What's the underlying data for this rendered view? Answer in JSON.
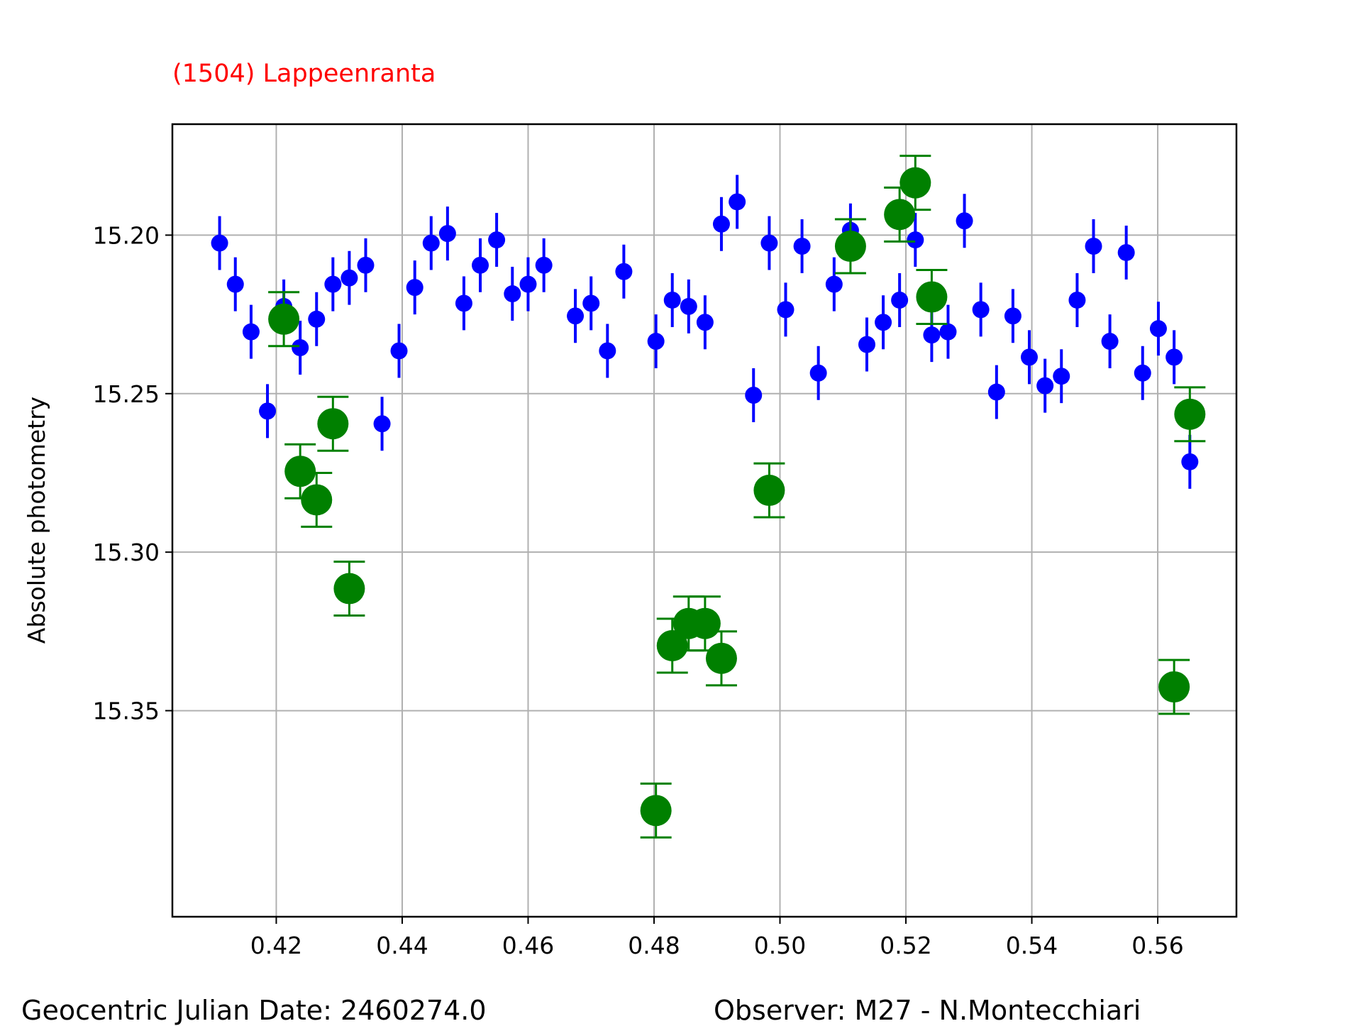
{
  "chart_data": {
    "type": "scatter",
    "title": "(1504) Lappeenranta",
    "xlabel": "",
    "ylabel": "Absolute photometry",
    "xlim": [
      0.4035,
      0.5725
    ],
    "ylim": [
      15.415,
      15.165
    ],
    "y_inverted": true,
    "grid": true,
    "x_ticks": [
      0.42,
      0.44,
      0.46,
      0.48,
      0.5,
      0.52,
      0.54,
      0.56
    ],
    "x_tick_labels": [
      "0.42",
      "0.44",
      "0.46",
      "0.48",
      "0.50",
      "0.52",
      "0.54",
      "0.56"
    ],
    "y_ticks": [
      15.2,
      15.25,
      15.3,
      15.35
    ],
    "y_tick_labels": [
      "15.20",
      "15.25",
      "15.30",
      "15.35"
    ],
    "series": [
      {
        "color": "#0000ff",
        "marker": "small-circle",
        "errorbar_caps": false,
        "err": 0.0085,
        "x": [
          0.411,
          0.4135,
          0.416,
          0.4186,
          0.4212,
          0.4238,
          0.4264,
          0.429,
          0.4316,
          0.4342,
          0.4368,
          0.4395,
          0.442,
          0.4446,
          0.4472,
          0.4498,
          0.4524,
          0.455,
          0.4575,
          0.46,
          0.4625,
          0.4675,
          0.47,
          0.4726,
          0.4752,
          0.4803,
          0.4829,
          0.4855,
          0.4881,
          0.4907,
          0.4932,
          0.4958,
          0.4983,
          0.5009,
          0.5035,
          0.5061,
          0.5086,
          0.5112,
          0.5138,
          0.5164,
          0.519,
          0.5215,
          0.5241,
          0.5267,
          0.5293,
          0.5319,
          0.5344,
          0.537,
          0.5396,
          0.5421,
          0.5447,
          0.5472,
          0.5498,
          0.5524,
          0.555,
          0.5576,
          0.5601,
          0.5626,
          0.5651
        ],
        "y": [
          15.2025,
          15.2155,
          15.2305,
          15.2555,
          15.2225,
          15.2355,
          15.2265,
          15.2155,
          15.2135,
          15.2095,
          15.2595,
          15.2365,
          15.2165,
          15.2025,
          15.1995,
          15.2215,
          15.2095,
          15.2015,
          15.2185,
          15.2155,
          15.2095,
          15.2255,
          15.2215,
          15.2365,
          15.2115,
          15.2335,
          15.2205,
          15.2225,
          15.2275,
          15.1965,
          15.1895,
          15.2505,
          15.2025,
          15.2235,
          15.2035,
          15.2435,
          15.2155,
          15.1985,
          15.2345,
          15.2275,
          15.2205,
          15.2015,
          15.2315,
          15.2305,
          15.1955,
          15.2235,
          15.2495,
          15.2255,
          15.2385,
          15.2475,
          15.2445,
          15.2205,
          15.2035,
          15.2335,
          15.2055,
          15.2435,
          15.2295,
          15.2385,
          15.2715
        ]
      },
      {
        "color": "#008000",
        "marker": "large-circle",
        "errorbar_caps": true,
        "err": 0.0085,
        "x": [
          0.4212,
          0.4238,
          0.4264,
          0.429,
          0.4316,
          0.4803,
          0.4829,
          0.4855,
          0.4881,
          0.4907,
          0.4983,
          0.5112,
          0.519,
          0.5215,
          0.5241,
          0.5626,
          0.5651
        ],
        "y": [
          15.2265,
          15.2745,
          15.2835,
          15.2595,
          15.3115,
          15.3815,
          15.3295,
          15.3225,
          15.3225,
          15.3335,
          15.2805,
          15.2035,
          15.1935,
          15.1835,
          15.2195,
          15.3425,
          15.2565
        ]
      }
    ]
  },
  "footer": {
    "left": "Geocentric Julian Date: 2460274.0",
    "right": "Observer: M27 - N.Montecchiari"
  }
}
